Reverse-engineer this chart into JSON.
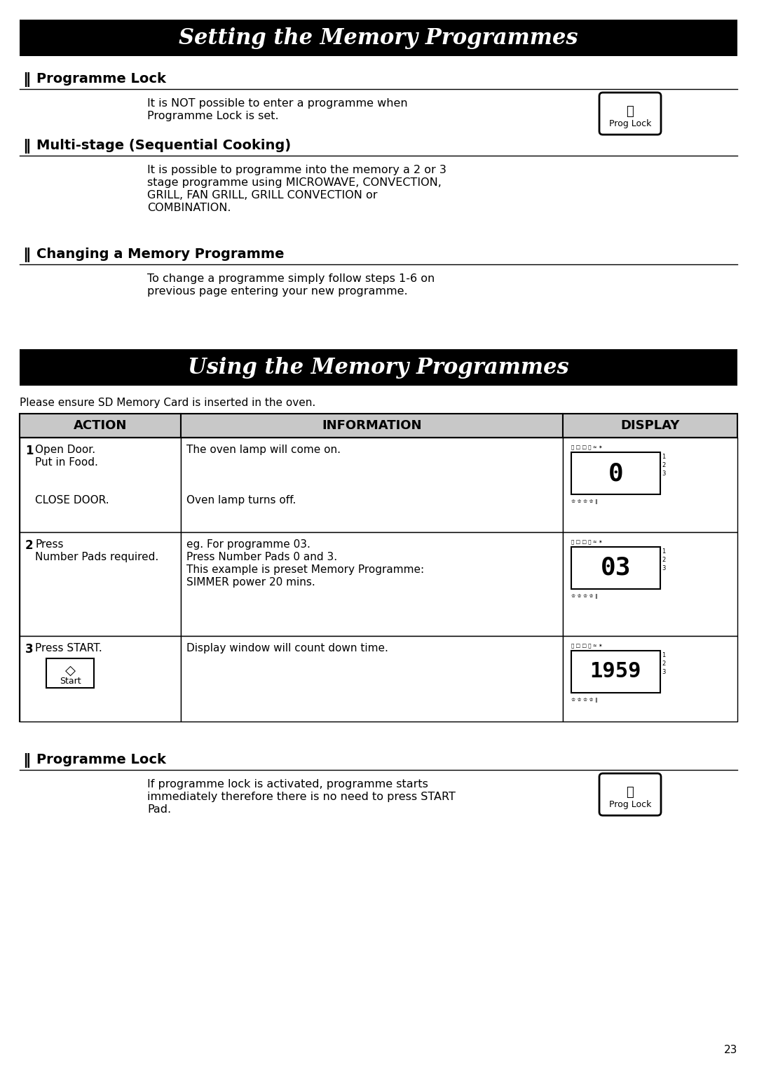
{
  "page_bg": "#ffffff",
  "title1": "Setting the Memory Programmes",
  "title2": "Using the Memory Programmes",
  "title_bg": "#000000",
  "title_fg": "#ffffff",
  "sections_top": [
    {
      "heading": "Programme Lock",
      "body_line1": "It is NOT possible to enter a programme when",
      "body_line2": "Programme Lock is set.",
      "has_button": true,
      "button_label": "Prog Lock"
    },
    {
      "heading": "Multi-stage (Sequential Cooking)",
      "body_line1": "It is possible to programme into the memory a 2 or 3",
      "body_line2": "stage programme using MICROWAVE, CONVECTION,",
      "body_line3": "GRILL, FAN GRILL, GRILL CONVECTION or",
      "body_line4": "COMBINATION.",
      "has_button": false
    },
    {
      "heading": "Changing a Memory Programme",
      "body_line1": "To change a programme simply follow steps 1-6 on",
      "body_line2": "previous page entering your new programme.",
      "has_button": false
    }
  ],
  "sd_note": "Please ensure SD Memory Card is inserted in the oven.",
  "table_header": [
    "ACTION",
    "INFORMATION",
    "DISPLAY"
  ],
  "table_header_bg": "#c8c8c8",
  "section_bottom": {
    "heading": "Programme Lock",
    "body_line1": "If programme lock is activated, programme starts",
    "body_line2": "immediately therefore there is no need to press START",
    "body_line3": "Pad.",
    "has_button": true,
    "button_label": "Prog Lock"
  },
  "page_number": "23"
}
